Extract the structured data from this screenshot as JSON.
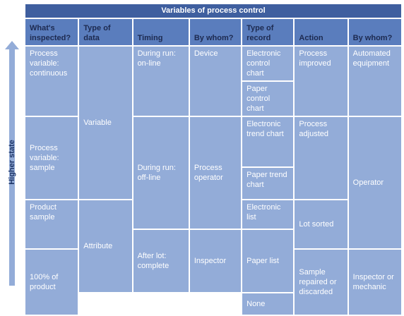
{
  "table": {
    "title": "Variables of process control",
    "side_label": "Higher state",
    "headers": [
      "What's inspected?",
      "Type of data",
      "Timing",
      "By whom?",
      "Type of record",
      "Action",
      "By whom?"
    ],
    "inspected": [
      "Process variable: continuous",
      "Process variable: sample",
      "Product sample",
      "100% of product"
    ],
    "data_type": [
      "Variable",
      "Attribute"
    ],
    "timing": [
      "During run: on-line",
      "During run: off-line",
      "After lot: complete"
    ],
    "timing_by": [
      "Device",
      "Process operator",
      "Inspector"
    ],
    "records": [
      "Electronic control chart",
      "Paper control chart",
      "Electronic trend chart",
      "Paper trend chart",
      "Electronic list",
      "Paper list",
      "None"
    ],
    "action": [
      "Process improved",
      "Process adjusted",
      "Lot sorted",
      "Sample repaired or discarded"
    ],
    "action_by": [
      "Automated equipment",
      "Operator",
      "Inspector or mechanic"
    ]
  }
}
